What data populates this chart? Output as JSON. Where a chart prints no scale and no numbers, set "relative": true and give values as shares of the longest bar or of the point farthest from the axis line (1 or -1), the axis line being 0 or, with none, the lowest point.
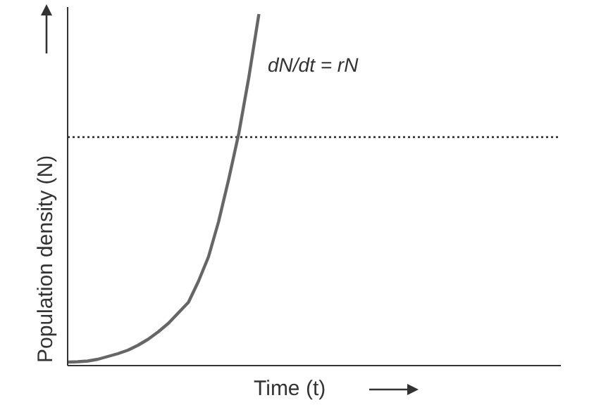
{
  "chart_data": {
    "type": "line",
    "relative": true,
    "xlabel": "Time (t)",
    "ylabel": "Population density (N)",
    "annotations": [
      "dN/dt = rN"
    ],
    "categories": [
      null,
      null,
      null,
      null,
      null,
      null,
      null,
      null,
      null,
      null,
      null,
      null,
      null,
      null,
      null,
      null,
      null,
      null,
      null,
      null,
      null,
      null,
      null,
      null,
      null,
      null,
      null,
      null,
      null,
      null,
      null,
      null,
      null,
      null,
      null,
      null,
      null,
      null,
      null,
      null,
      null,
      null,
      null,
      null,
      null,
      null,
      null,
      null,
      null,
      null
    ],
    "series": [
      {
        "color": "#666666",
        "values": [
          0.01,
          0.011,
          0.013,
          0.018,
          0.026,
          0.034,
          0.044,
          0.058,
          0.075,
          0.096,
          0.12,
          0.15,
          0.18,
          0.24,
          0.31,
          0.41,
          0.53,
          0.66,
          0.82,
          1,
          null,
          null,
          null,
          null,
          null,
          null,
          null,
          null,
          null,
          null,
          null,
          null,
          null,
          null,
          null,
          null,
          null,
          null,
          null,
          null,
          null,
          null,
          null,
          null,
          null,
          null,
          null,
          null,
          null,
          null
        ]
      }
    ],
    "ref_lines": [
      {
        "axis": "y",
        "value": 0.65,
        "color": "#222222",
        "line_style": "dotted"
      }
    ],
    "marker": "none",
    "line_style": "solid"
  }
}
